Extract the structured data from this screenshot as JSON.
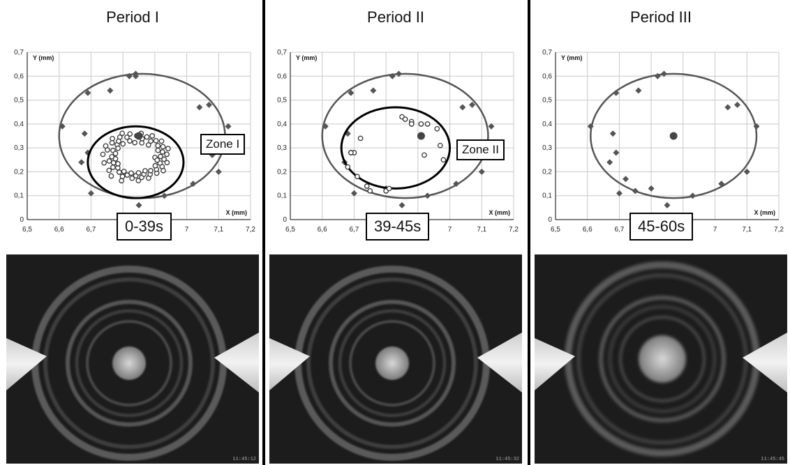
{
  "colors": {
    "point": "#555555",
    "circle_outer": "#555555",
    "circle_zone": "#000000",
    "photo_bg": "#1c1c1c"
  },
  "chart_data": [
    {
      "type": "scatter",
      "title": "Period I",
      "xlabel": "X (mm)",
      "ylabel": "Y (mm)",
      "xlim": [
        6.5,
        7.2
      ],
      "ylim": [
        0,
        0.7
      ],
      "xticks": [
        "6,5",
        "6,6",
        "6,7",
        "6,8",
        "6,9",
        "7",
        "7,1",
        "7,2"
      ],
      "yticks": [
        "0",
        "0,1",
        "0,2",
        "0,3",
        "0,4",
        "0,5",
        "0,6",
        "0,7"
      ],
      "zone_label": "Zone I",
      "time_label": "0-39s",
      "timestamp": "11:45:12",
      "boundary_points": [
        [
          6.61,
          0.39
        ],
        [
          6.68,
          0.36
        ],
        [
          6.69,
          0.53
        ],
        [
          6.76,
          0.54
        ],
        [
          6.82,
          0.6
        ],
        [
          6.84,
          0.61
        ],
        [
          6.84,
          0.6
        ],
        [
          7.04,
          0.47
        ],
        [
          7.07,
          0.48
        ],
        [
          7.13,
          0.39
        ],
        [
          6.69,
          0.28
        ],
        [
          6.67,
          0.24
        ],
        [
          6.7,
          0.11
        ],
        [
          6.85,
          0.06
        ],
        [
          6.93,
          0.1
        ],
        [
          7.02,
          0.15
        ],
        [
          7.1,
          0.2
        ],
        [
          7.08,
          0.27
        ]
      ],
      "outer_circle": {
        "cx": 6.86,
        "cy": 0.35,
        "r": 0.26
      },
      "zone_circle": {
        "cx": 6.84,
        "cy": 0.24,
        "r": 0.15
      },
      "center": [
        6.85,
        0.35
      ],
      "dense_ring": {
        "cx": 6.84,
        "cy": 0.26,
        "rx": 0.11,
        "ry": 0.11,
        "count": 70
      }
    },
    {
      "type": "scatter",
      "title": "Period II",
      "xlabel": "X (mm)",
      "ylabel": "Y (mm)",
      "xlim": [
        6.5,
        7.2
      ],
      "ylim": [
        0,
        0.7
      ],
      "xticks": [
        "6,5",
        "6,6",
        "6,7",
        "6,8",
        "6,9",
        "7",
        "7,1",
        "7,2"
      ],
      "yticks": [
        "0",
        "0,1",
        "0,2",
        "0,3",
        "0,4",
        "0,5",
        "0,6",
        "0,7"
      ],
      "zone_label": "Zone II",
      "time_label": "39-45s",
      "timestamp": "11:45:32",
      "boundary_points": [
        [
          6.61,
          0.39
        ],
        [
          6.68,
          0.36
        ],
        [
          6.69,
          0.53
        ],
        [
          6.76,
          0.54
        ],
        [
          6.82,
          0.6
        ],
        [
          6.84,
          0.61
        ],
        [
          7.04,
          0.47
        ],
        [
          7.07,
          0.48
        ],
        [
          7.13,
          0.39
        ],
        [
          6.69,
          0.28
        ],
        [
          6.67,
          0.24
        ],
        [
          6.7,
          0.11
        ],
        [
          6.85,
          0.06
        ],
        [
          6.93,
          0.1
        ],
        [
          7.02,
          0.15
        ],
        [
          7.1,
          0.2
        ],
        [
          6.8,
          0.13
        ]
      ],
      "outer_circle": {
        "cx": 6.86,
        "cy": 0.35,
        "r": 0.26
      },
      "zone_circle": {
        "cx": 6.83,
        "cy": 0.3,
        "r": 0.17
      },
      "center": [
        6.91,
        0.35
      ],
      "hollow_points": [
        [
          6.85,
          0.43
        ],
        [
          6.86,
          0.42
        ],
        [
          6.88,
          0.41
        ],
        [
          6.91,
          0.4
        ],
        [
          6.93,
          0.4
        ],
        [
          6.96,
          0.38
        ],
        [
          6.97,
          0.31
        ],
        [
          6.98,
          0.25
        ],
        [
          6.92,
          0.27
        ],
        [
          6.72,
          0.34
        ],
        [
          6.7,
          0.28
        ],
        [
          6.69,
          0.28
        ],
        [
          6.68,
          0.22
        ],
        [
          6.71,
          0.18
        ],
        [
          6.74,
          0.14
        ],
        [
          6.75,
          0.12
        ],
        [
          6.8,
          0.12
        ],
        [
          6.81,
          0.13
        ],
        [
          6.88,
          0.4
        ]
      ]
    },
    {
      "type": "scatter",
      "title": "Period III",
      "xlabel": "X (mm)",
      "ylabel": "Y (mm)",
      "xlim": [
        6.5,
        7.2
      ],
      "ylim": [
        0,
        0.7
      ],
      "xticks": [
        "6,5",
        "6,6",
        "6,7",
        "6,8",
        "6,9",
        "7",
        "7,1",
        "7,2"
      ],
      "yticks": [
        "0",
        "0,1",
        "0,2",
        "0,3",
        "0,4",
        "0,5",
        "0,6",
        "0,7"
      ],
      "zone_label": "",
      "time_label": "45-60s",
      "timestamp": "11:45:45",
      "boundary_points": [
        [
          6.61,
          0.39
        ],
        [
          6.68,
          0.36
        ],
        [
          6.69,
          0.53
        ],
        [
          6.76,
          0.54
        ],
        [
          6.82,
          0.6
        ],
        [
          6.84,
          0.61
        ],
        [
          7.04,
          0.47
        ],
        [
          7.07,
          0.48
        ],
        [
          7.13,
          0.39
        ],
        [
          6.69,
          0.28
        ],
        [
          6.67,
          0.24
        ],
        [
          6.7,
          0.11
        ],
        [
          6.85,
          0.06
        ],
        [
          6.93,
          0.1
        ],
        [
          7.02,
          0.15
        ],
        [
          7.1,
          0.2
        ],
        [
          6.8,
          0.13
        ],
        [
          6.75,
          0.12
        ],
        [
          6.72,
          0.17
        ]
      ],
      "outer_circle": {
        "cx": 6.87,
        "cy": 0.35,
        "r": 0.26
      },
      "center": [
        6.87,
        0.35
      ]
    }
  ]
}
